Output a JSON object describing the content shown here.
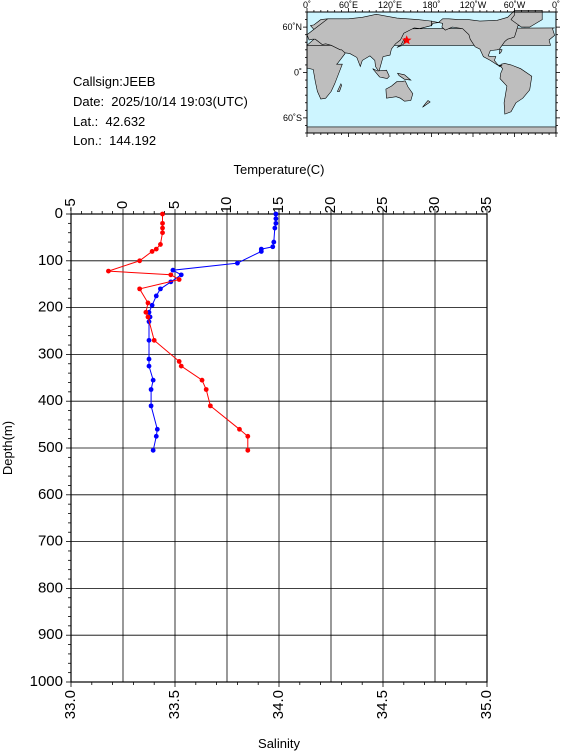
{
  "station": {
    "callsign": "Callsign:JEEB",
    "date": "Date:  2025/10/14 19:03(UTC)",
    "lat": "Lat.:  42.632",
    "lon": "Lon.:  144.192"
  },
  "map": {
    "lon_labels": [
      "0˚",
      "60˚E",
      "120˚E",
      "180˚",
      "120˚W",
      "60˚W",
      "0˚"
    ],
    "lat_labels": [
      "60˚N",
      "0˚",
      "60˚S"
    ],
    "ocean_color": "#cdf5ff",
    "land_color": "#bebebe",
    "marker_color": "#ff0000",
    "marker": {
      "lat": 42.632,
      "lon": 144.192
    }
  },
  "chart_data": {
    "type": "line",
    "title": "",
    "top_axis": {
      "label": "Temperature(C)",
      "range": [
        -5,
        35
      ],
      "ticks": [
        -5,
        0,
        5,
        10,
        15,
        20,
        25,
        30,
        35
      ]
    },
    "bottom_axis": {
      "label": "Salinity",
      "range": [
        33.0,
        35.0
      ],
      "ticks": [
        "33.0",
        "33.5",
        "34.0",
        "34.5",
        "35.0"
      ]
    },
    "y_axis": {
      "label": "Depth(m)",
      "range": [
        0,
        1000
      ],
      "inverted": true,
      "ticks": [
        0,
        100,
        200,
        300,
        400,
        500,
        600,
        700,
        800,
        900,
        1000
      ]
    },
    "grid": true,
    "series": [
      {
        "quantity": "temperature",
        "color": "#0000ff",
        "points": [
          [
            14.7,
            0
          ],
          [
            14.7,
            10
          ],
          [
            14.7,
            20
          ],
          [
            14.6,
            30
          ],
          [
            14.5,
            60
          ],
          [
            14.4,
            70
          ],
          [
            13.3,
            75
          ],
          [
            13.3,
            80
          ],
          [
            11.0,
            105
          ],
          [
            4.8,
            120
          ],
          [
            5.6,
            130
          ],
          [
            4.6,
            145
          ],
          [
            3.6,
            160
          ],
          [
            3.2,
            175
          ],
          [
            2.8,
            195
          ],
          [
            2.5,
            210
          ],
          [
            2.6,
            220
          ],
          [
            2.5,
            230
          ],
          [
            2.5,
            270
          ],
          [
            2.5,
            310
          ],
          [
            2.5,
            325
          ],
          [
            2.9,
            355
          ],
          [
            2.7,
            375
          ],
          [
            2.7,
            410
          ],
          [
            3.3,
            460
          ],
          [
            3.2,
            475
          ],
          [
            2.9,
            505
          ]
        ]
      },
      {
        "quantity": "salinity",
        "color": "#ff0000",
        "points": [
          [
            33.44,
            0
          ],
          [
            33.44,
            20
          ],
          [
            33.44,
            30
          ],
          [
            33.44,
            40
          ],
          [
            33.43,
            65
          ],
          [
            33.41,
            75
          ],
          [
            33.39,
            80
          ],
          [
            33.33,
            100
          ],
          [
            33.18,
            122
          ],
          [
            33.48,
            130
          ],
          [
            33.52,
            140
          ],
          [
            33.33,
            160
          ],
          [
            33.37,
            190
          ],
          [
            33.36,
            210
          ],
          [
            33.37,
            220
          ],
          [
            33.4,
            270
          ],
          [
            33.52,
            315
          ],
          [
            33.53,
            325
          ],
          [
            33.63,
            355
          ],
          [
            33.65,
            375
          ],
          [
            33.67,
            410
          ],
          [
            33.81,
            460
          ],
          [
            33.85,
            475
          ],
          [
            33.85,
            505
          ]
        ]
      }
    ]
  }
}
